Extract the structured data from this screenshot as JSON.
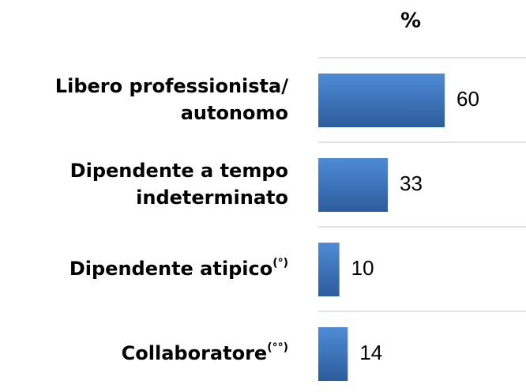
{
  "chart_data": {
    "type": "hbar",
    "title": "%",
    "categories": [
      [
        "Libero professionista/",
        "autonomo"
      ],
      [
        "Dipendente a tempo",
        "indeterminato"
      ],
      [
        "Dipendente atipico"
      ],
      [
        "Collaboratore"
      ]
    ],
    "category_notes": [
      null,
      null,
      "(°)",
      "(°°)"
    ],
    "values": [
      60,
      33,
      10,
      14
    ],
    "color": "#3a73c0"
  }
}
